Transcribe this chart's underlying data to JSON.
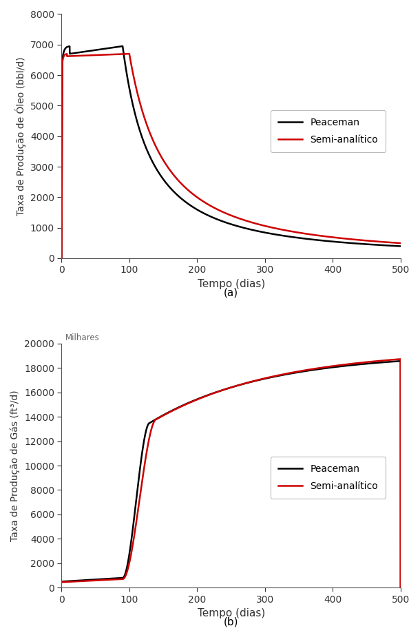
{
  "fig_width": 6.1,
  "fig_height": 9.22,
  "dpi": 100,
  "background_color": "#ffffff",
  "plot_a": {
    "xlabel": "Tempo (dias)",
    "ylabel": "Taxa de Produção de Óleo (bbl/d)",
    "caption": "(a)",
    "xlim": [
      0,
      500
    ],
    "ylim": [
      0,
      8000
    ],
    "yticks": [
      0,
      1000,
      2000,
      3000,
      4000,
      5000,
      6000,
      7000,
      8000
    ],
    "xticks": [
      0,
      100,
      200,
      300,
      400,
      500
    ],
    "legend_labels": [
      "Peaceman",
      "Semi-analítico"
    ],
    "peaceman_color": "#000000",
    "semianalytic_color": "#cc0000",
    "line_width": 1.8
  },
  "plot_b": {
    "xlabel": "Tempo (dias)",
    "ylabel": "Taxa de Produção de Gás (ft³/d)",
    "ylabel2": "Milhares",
    "caption": "(b)",
    "xlim": [
      0,
      500
    ],
    "ylim": [
      0,
      20000
    ],
    "yticks": [
      0,
      2000,
      4000,
      6000,
      8000,
      10000,
      12000,
      14000,
      16000,
      18000,
      20000
    ],
    "xticks": [
      0,
      100,
      200,
      300,
      400,
      500
    ],
    "legend_labels": [
      "Peaceman",
      "Semi-analítico"
    ],
    "peaceman_color": "#000000",
    "semianalytic_color": "#cc0000",
    "line_width": 1.8
  }
}
